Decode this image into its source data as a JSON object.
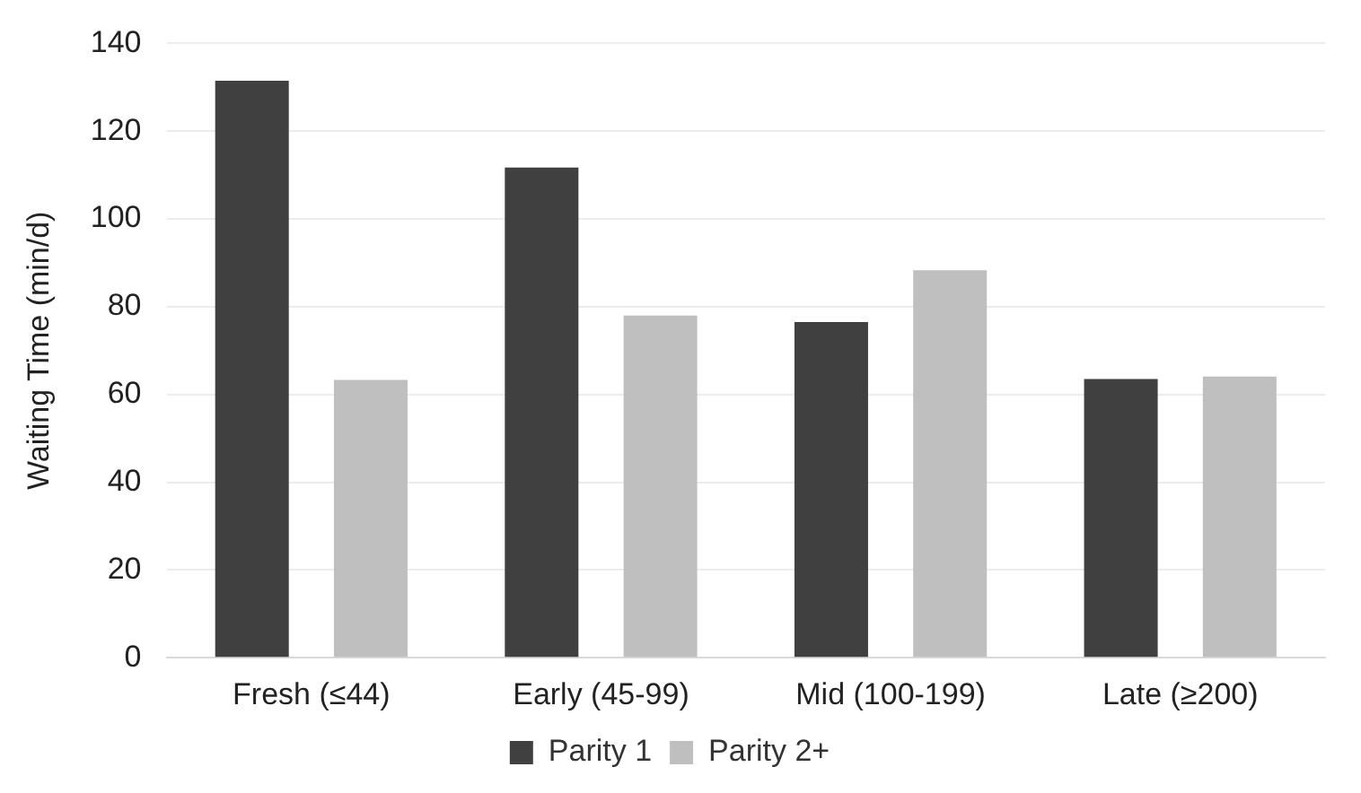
{
  "chart_data": {
    "type": "bar",
    "ylabel": "Waiting Time (min/d)",
    "categories": [
      "Fresh (≤44)",
      "Early (45-99)",
      "Mid (100-199)",
      "Late (≥200)"
    ],
    "series": [
      {
        "name": "Parity 1",
        "color": "#404040",
        "values": [
          131.5,
          111.7,
          76.5,
          63.5
        ]
      },
      {
        "name": "Parity 2+",
        "color": "#bfbfbf",
        "values": [
          63.3,
          78,
          88.3,
          64.1
        ]
      }
    ],
    "ylim": [
      0,
      140
    ],
    "yticks": [
      0,
      20,
      40,
      60,
      80,
      100,
      120,
      140
    ],
    "grid": "y",
    "legend": "bottom"
  }
}
